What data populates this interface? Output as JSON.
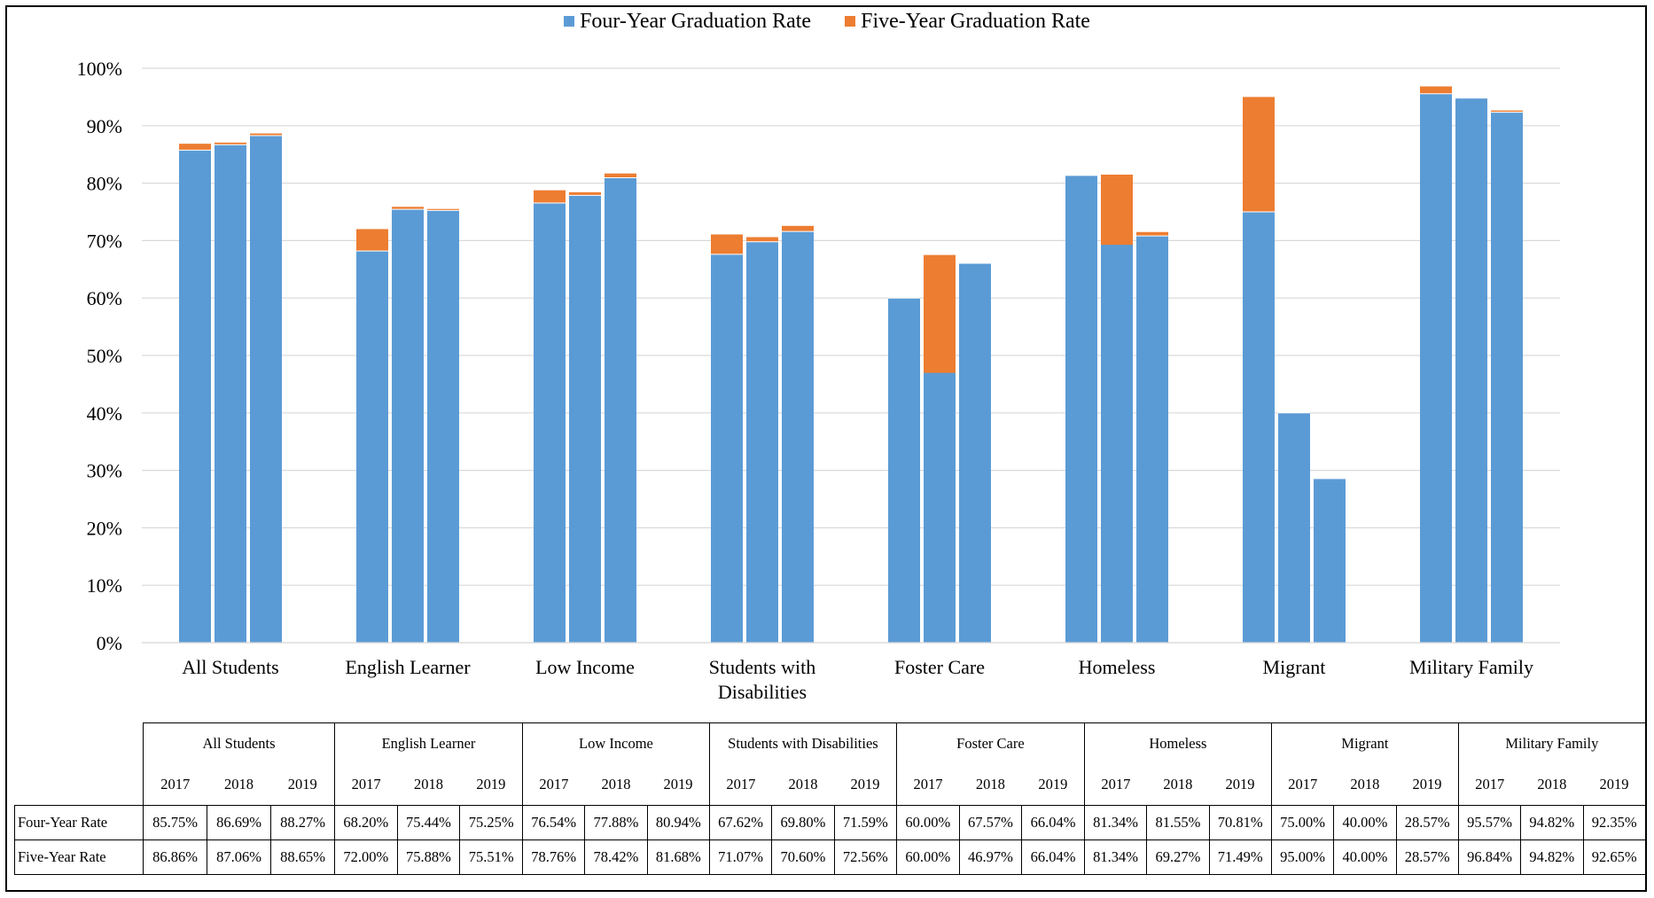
{
  "chart_data": {
    "type": "bar",
    "stacked": true,
    "title": "",
    "xlabel": "",
    "ylabel": "",
    "ylim": [
      0,
      1
    ],
    "yticks": [
      "0%",
      "10%",
      "20%",
      "30%",
      "40%",
      "50%",
      "60%",
      "70%",
      "80%",
      "90%",
      "100%"
    ],
    "grid": true,
    "legend_position": "top",
    "groups": [
      "All Students",
      "English Learner",
      "Low Income",
      "Students with Disabilities",
      "Foster Care",
      "Homeless",
      "Migrant",
      "Military Family"
    ],
    "years": [
      "2017",
      "2018",
      "2019"
    ],
    "series": [
      {
        "name": "Four-Year Graduation Rate",
        "color": "#5B9BD5",
        "values": [
          [
            0.8575,
            0.8669,
            0.8827
          ],
          [
            0.682,
            0.7544,
            0.7525
          ],
          [
            0.7654,
            0.7788,
            0.8094
          ],
          [
            0.6762,
            0.698,
            0.7159
          ],
          [
            0.6,
            0.6757,
            0.6604
          ],
          [
            0.8134,
            0.8155,
            0.7081
          ],
          [
            0.75,
            0.4,
            0.2857
          ],
          [
            0.9557,
            0.9482,
            0.9235
          ]
        ]
      },
      {
        "name": "Five-Year Graduation Rate",
        "color": "#ED7D31",
        "values": [
          [
            0.8686,
            0.8706,
            0.8865
          ],
          [
            0.72,
            0.7588,
            0.7551
          ],
          [
            0.7876,
            0.7842,
            0.8168
          ],
          [
            0.7107,
            0.706,
            0.7256
          ],
          [
            0.6,
            0.4697,
            0.6604
          ],
          [
            0.8134,
            0.6927,
            0.7149
          ],
          [
            0.95,
            0.4,
            0.2857
          ],
          [
            0.9684,
            0.9482,
            0.9265
          ]
        ]
      }
    ]
  },
  "table": {
    "group_labels": [
      "All Students",
      "English Learner",
      "Low Income",
      "Students with Disabilities",
      "Foster Care",
      "Homeless",
      "Migrant",
      "Military Family"
    ],
    "years": [
      "2017",
      "2018",
      "2019"
    ],
    "rows": [
      {
        "label": "Four-Year Rate",
        "values": [
          "85.75%",
          "86.69%",
          "88.27%",
          "68.20%",
          "75.44%",
          "75.25%",
          "76.54%",
          "77.88%",
          "80.94%",
          "67.62%",
          "69.80%",
          "71.59%",
          "60.00%",
          "67.57%",
          "66.04%",
          "81.34%",
          "81.55%",
          "70.81%",
          "75.00%",
          "40.00%",
          "28.57%",
          "95.57%",
          "94.82%",
          "92.35%"
        ]
      },
      {
        "label": "Five-Year Rate",
        "values": [
          "86.86%",
          "87.06%",
          "88.65%",
          "72.00%",
          "75.88%",
          "75.51%",
          "78.76%",
          "78.42%",
          "81.68%",
          "71.07%",
          "70.60%",
          "72.56%",
          "60.00%",
          "46.97%",
          "66.04%",
          "81.34%",
          "69.27%",
          "71.49%",
          "95.00%",
          "40.00%",
          "28.57%",
          "96.84%",
          "94.82%",
          "92.65%"
        ]
      }
    ]
  }
}
